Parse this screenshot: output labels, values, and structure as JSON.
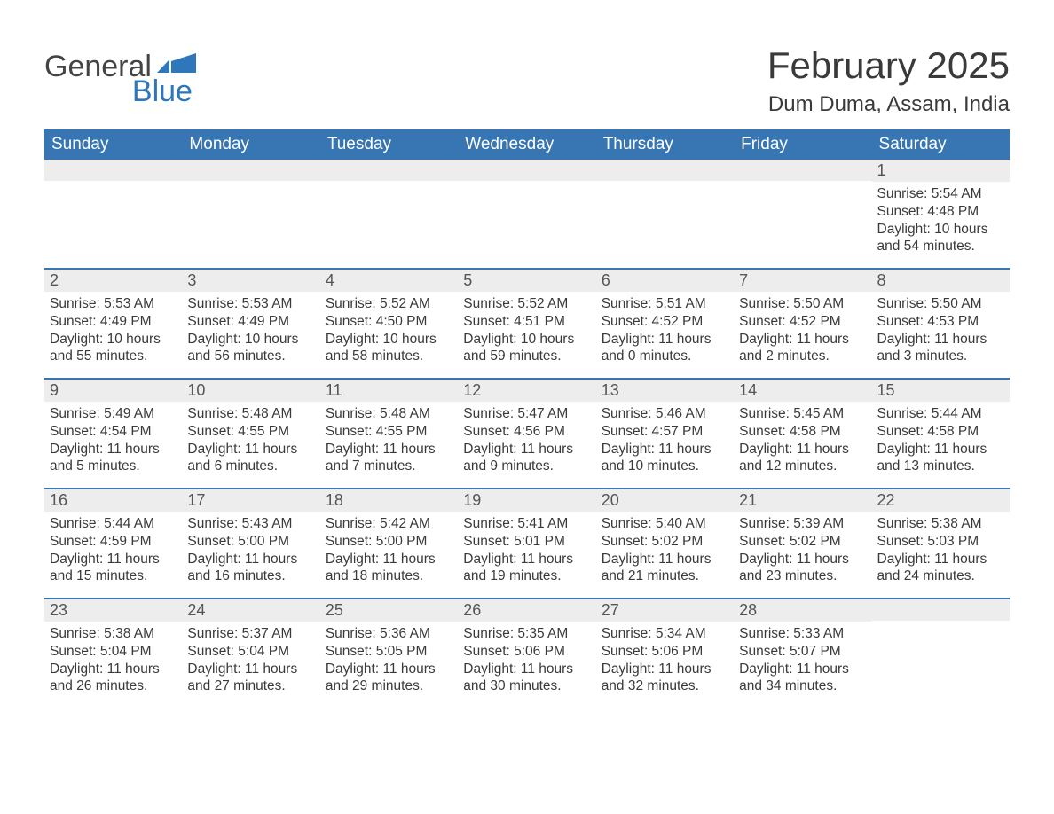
{
  "brand": {
    "word1": "General",
    "word2": "Blue",
    "text_color": "#444444",
    "accent_color": "#2f77bb",
    "flag_color": "#2f77bb"
  },
  "title": {
    "month_year": "February 2025",
    "location": "Dum Duma, Assam, India",
    "title_fontsize": 42,
    "location_fontsize": 24
  },
  "colors": {
    "header_bg": "#3876b3",
    "header_text": "#ffffff",
    "daynum_bg": "#ededed",
    "week_border": "#3876b3",
    "body_text": "#3a3a3a",
    "background": "#ffffff"
  },
  "day_labels": [
    "Sunday",
    "Monday",
    "Tuesday",
    "Wednesday",
    "Thursday",
    "Friday",
    "Saturday"
  ],
  "labels": {
    "sunrise": "Sunrise",
    "sunset": "Sunset",
    "daylight": "Daylight"
  },
  "weeks": [
    [
      null,
      null,
      null,
      null,
      null,
      null,
      {
        "n": "1",
        "sunrise": "5:54 AM",
        "sunset": "4:48 PM",
        "dl1": "10 hours",
        "dl2": "and 54 minutes."
      }
    ],
    [
      {
        "n": "2",
        "sunrise": "5:53 AM",
        "sunset": "4:49 PM",
        "dl1": "10 hours",
        "dl2": "and 55 minutes."
      },
      {
        "n": "3",
        "sunrise": "5:53 AM",
        "sunset": "4:49 PM",
        "dl1": "10 hours",
        "dl2": "and 56 minutes."
      },
      {
        "n": "4",
        "sunrise": "5:52 AM",
        "sunset": "4:50 PM",
        "dl1": "10 hours",
        "dl2": "and 58 minutes."
      },
      {
        "n": "5",
        "sunrise": "5:52 AM",
        "sunset": "4:51 PM",
        "dl1": "10 hours",
        "dl2": "and 59 minutes."
      },
      {
        "n": "6",
        "sunrise": "5:51 AM",
        "sunset": "4:52 PM",
        "dl1": "11 hours",
        "dl2": "and 0 minutes."
      },
      {
        "n": "7",
        "sunrise": "5:50 AM",
        "sunset": "4:52 PM",
        "dl1": "11 hours",
        "dl2": "and 2 minutes."
      },
      {
        "n": "8",
        "sunrise": "5:50 AM",
        "sunset": "4:53 PM",
        "dl1": "11 hours",
        "dl2": "and 3 minutes."
      }
    ],
    [
      {
        "n": "9",
        "sunrise": "5:49 AM",
        "sunset": "4:54 PM",
        "dl1": "11 hours",
        "dl2": "and 5 minutes."
      },
      {
        "n": "10",
        "sunrise": "5:48 AM",
        "sunset": "4:55 PM",
        "dl1": "11 hours",
        "dl2": "and 6 minutes."
      },
      {
        "n": "11",
        "sunrise": "5:48 AM",
        "sunset": "4:55 PM",
        "dl1": "11 hours",
        "dl2": "and 7 minutes."
      },
      {
        "n": "12",
        "sunrise": "5:47 AM",
        "sunset": "4:56 PM",
        "dl1": "11 hours",
        "dl2": "and 9 minutes."
      },
      {
        "n": "13",
        "sunrise": "5:46 AM",
        "sunset": "4:57 PM",
        "dl1": "11 hours",
        "dl2": "and 10 minutes."
      },
      {
        "n": "14",
        "sunrise": "5:45 AM",
        "sunset": "4:58 PM",
        "dl1": "11 hours",
        "dl2": "and 12 minutes."
      },
      {
        "n": "15",
        "sunrise": "5:44 AM",
        "sunset": "4:58 PM",
        "dl1": "11 hours",
        "dl2": "and 13 minutes."
      }
    ],
    [
      {
        "n": "16",
        "sunrise": "5:44 AM",
        "sunset": "4:59 PM",
        "dl1": "11 hours",
        "dl2": "and 15 minutes."
      },
      {
        "n": "17",
        "sunrise": "5:43 AM",
        "sunset": "5:00 PM",
        "dl1": "11 hours",
        "dl2": "and 16 minutes."
      },
      {
        "n": "18",
        "sunrise": "5:42 AM",
        "sunset": "5:00 PM",
        "dl1": "11 hours",
        "dl2": "and 18 minutes."
      },
      {
        "n": "19",
        "sunrise": "5:41 AM",
        "sunset": "5:01 PM",
        "dl1": "11 hours",
        "dl2": "and 19 minutes."
      },
      {
        "n": "20",
        "sunrise": "5:40 AM",
        "sunset": "5:02 PM",
        "dl1": "11 hours",
        "dl2": "and 21 minutes."
      },
      {
        "n": "21",
        "sunrise": "5:39 AM",
        "sunset": "5:02 PM",
        "dl1": "11 hours",
        "dl2": "and 23 minutes."
      },
      {
        "n": "22",
        "sunrise": "5:38 AM",
        "sunset": "5:03 PM",
        "dl1": "11 hours",
        "dl2": "and 24 minutes."
      }
    ],
    [
      {
        "n": "23",
        "sunrise": "5:38 AM",
        "sunset": "5:04 PM",
        "dl1": "11 hours",
        "dl2": "and 26 minutes."
      },
      {
        "n": "24",
        "sunrise": "5:37 AM",
        "sunset": "5:04 PM",
        "dl1": "11 hours",
        "dl2": "and 27 minutes."
      },
      {
        "n": "25",
        "sunrise": "5:36 AM",
        "sunset": "5:05 PM",
        "dl1": "11 hours",
        "dl2": "and 29 minutes."
      },
      {
        "n": "26",
        "sunrise": "5:35 AM",
        "sunset": "5:06 PM",
        "dl1": "11 hours",
        "dl2": "and 30 minutes."
      },
      {
        "n": "27",
        "sunrise": "5:34 AM",
        "sunset": "5:06 PM",
        "dl1": "11 hours",
        "dl2": "and 32 minutes."
      },
      {
        "n": "28",
        "sunrise": "5:33 AM",
        "sunset": "5:07 PM",
        "dl1": "11 hours",
        "dl2": "and 34 minutes."
      },
      null
    ]
  ]
}
